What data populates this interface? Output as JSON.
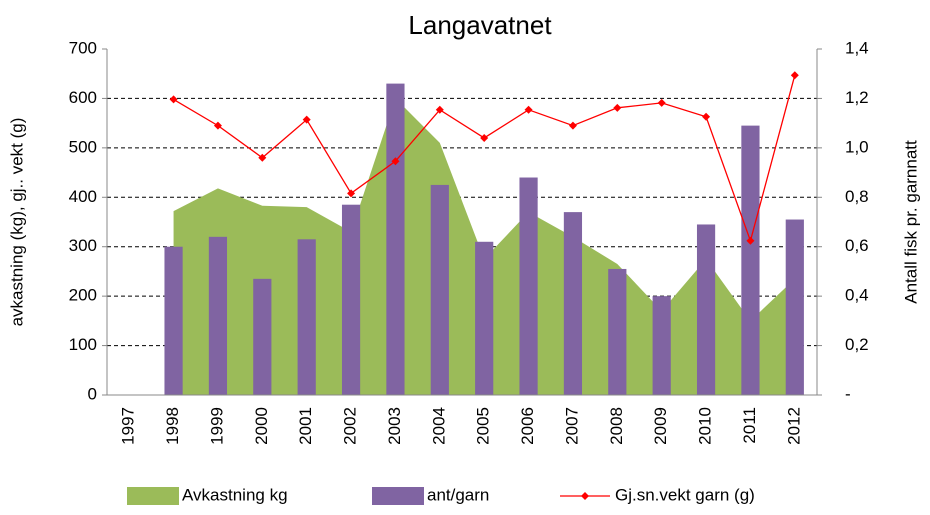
{
  "chart_data": {
    "type": "combo",
    "title": "Langavatnet",
    "y_label": "avkastning (kg), gj.. vekt (g)",
    "y2_label": "Antall fisk pr. garnnatt",
    "categories": [
      "1997",
      "1998",
      "1999",
      "2000",
      "2001",
      "2002",
      "2003",
      "2004",
      "2005",
      "2006",
      "2007",
      "2008",
      "2009",
      "2010",
      "2011",
      "2012"
    ],
    "series": [
      {
        "name": "Avkastning kg",
        "type": "area",
        "color": "#9bbb59",
        "values": [
          null,
          372,
          418,
          383,
          380,
          330,
          600,
          510,
          275,
          370,
          320,
          265,
          170,
          275,
          150,
          235
        ]
      },
      {
        "name": "ant/garn",
        "type": "bar",
        "axis": "y2",
        "color": "#8064a2",
        "values": [
          null,
          0.6,
          0.64,
          0.47,
          0.63,
          0.77,
          1.26,
          0.85,
          0.62,
          0.88,
          0.74,
          0.51,
          0.4,
          0.69,
          1.09,
          0.71
        ]
      },
      {
        "name": "Gj.sn.vekt garn (g)",
        "type": "line",
        "color": "#ff0000",
        "values": [
          null,
          598,
          545,
          480,
          557,
          408,
          473,
          577,
          520,
          577,
          545,
          581,
          591,
          563,
          312,
          647
        ]
      }
    ],
    "ylim": [
      0,
      700
    ],
    "yticks": [
      0,
      100,
      200,
      300,
      400,
      500,
      600,
      700
    ],
    "y2lim": [
      0,
      1.4
    ],
    "y2ticks": [
      {
        "value": 0,
        "label": "-"
      },
      {
        "value": 0.2,
        "label": "0,2"
      },
      {
        "value": 0.4,
        "label": "0,4"
      },
      {
        "value": 0.6,
        "label": "0,6"
      },
      {
        "value": 0.8,
        "label": "0,8"
      },
      {
        "value": 1.0,
        "label": "1,0"
      },
      {
        "value": 1.2,
        "label": "1,2"
      },
      {
        "value": 1.4,
        "label": "1,4"
      }
    ],
    "grid": true,
    "legend": "bottom"
  }
}
